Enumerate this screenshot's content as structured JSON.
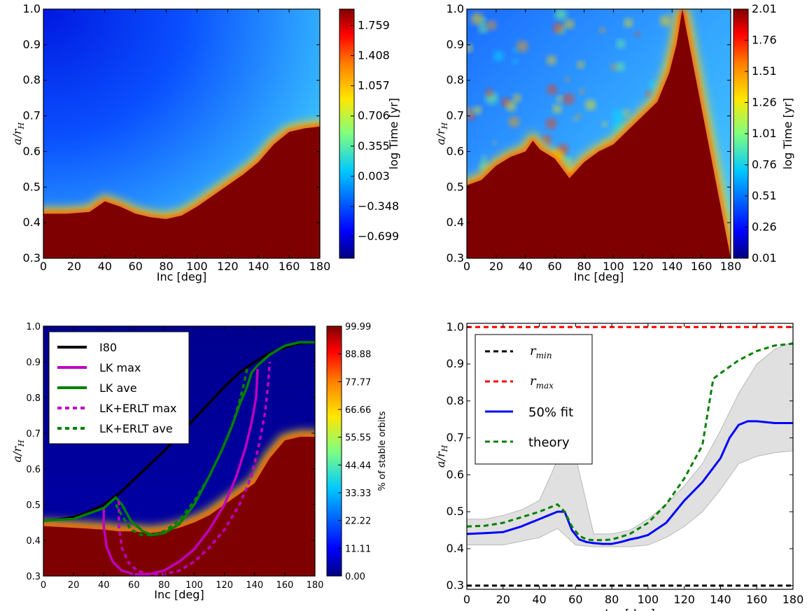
{
  "colorbar_palette": [
    "#00007f",
    "#0000ff",
    "#007fff",
    "#00ffff",
    "#7fff7f",
    "#ffff00",
    "#ff7f00",
    "#ff0000",
    "#7f0000"
  ],
  "chart_data": [
    {
      "type": "heatmap",
      "xlabel": "Inc [deg]",
      "ylabel_main": "a",
      "ylabel_sub": "H",
      "xlim": [
        0,
        180
      ],
      "ylim": [
        0.3,
        1.0
      ],
      "x_ticks": [
        "0",
        "20",
        "40",
        "60",
        "80",
        "100",
        "120",
        "140",
        "160",
        "180"
      ],
      "y_ticks": [
        "0.3",
        "0.4",
        "0.5",
        "0.6",
        "0.7",
        "0.8",
        "0.9",
        "1.0"
      ],
      "colorbar_label": "log Time [yr]",
      "colorbar_ticks": [
        "−0.699",
        "−0.348",
        "0.003",
        "0.355",
        "0.706",
        "1.057",
        "1.408",
        "1.759"
      ],
      "colorbar_range": [
        -0.95,
        1.95
      ],
      "boundary": [
        [
          0,
          0.425
        ],
        [
          15,
          0.425
        ],
        [
          30,
          0.43
        ],
        [
          40,
          0.46
        ],
        [
          50,
          0.445
        ],
        [
          60,
          0.425
        ],
        [
          70,
          0.415
        ],
        [
          80,
          0.41
        ],
        [
          90,
          0.42
        ],
        [
          100,
          0.445
        ],
        [
          110,
          0.475
        ],
        [
          120,
          0.505
        ],
        [
          130,
          0.535
        ],
        [
          140,
          0.57
        ],
        [
          150,
          0.62
        ],
        [
          160,
          0.655
        ],
        [
          170,
          0.665
        ],
        [
          180,
          0.67
        ]
      ]
    },
    {
      "type": "heatmap",
      "xlabel": "Inc [deg]",
      "ylabel_main": "a",
      "ylabel_sub": "H",
      "xlim": [
        0,
        180
      ],
      "ylim": [
        0.3,
        1.0
      ],
      "x_ticks": [
        "0",
        "20",
        "40",
        "60",
        "80",
        "100",
        "120",
        "140",
        "160",
        "180"
      ],
      "y_ticks": [
        "0.3",
        "0.4",
        "0.5",
        "0.6",
        "0.7",
        "0.8",
        "0.9",
        "1.0"
      ],
      "colorbar_label": "log Time [yr]",
      "colorbar_ticks": [
        "0.01",
        "0.26",
        "0.51",
        "0.76",
        "1.01",
        "1.26",
        "1.51",
        "1.76",
        "2.01"
      ],
      "colorbar_range": [
        0.01,
        2.01
      ],
      "boundary": [
        [
          0,
          0.505
        ],
        [
          10,
          0.52
        ],
        [
          20,
          0.56
        ],
        [
          30,
          0.585
        ],
        [
          40,
          0.6
        ],
        [
          45,
          0.63
        ],
        [
          50,
          0.605
        ],
        [
          60,
          0.58
        ],
        [
          70,
          0.525
        ],
        [
          80,
          0.57
        ],
        [
          90,
          0.6
        ],
        [
          100,
          0.62
        ],
        [
          110,
          0.66
        ],
        [
          120,
          0.7
        ],
        [
          130,
          0.74
        ],
        [
          138,
          0.82
        ],
        [
          143,
          0.9
        ],
        [
          147,
          1.0
        ]
      ]
    },
    {
      "type": "heatmap",
      "xlabel": "Inc [deg]",
      "ylabel_main": "a",
      "ylabel_sub": "H",
      "xlim": [
        0,
        180
      ],
      "ylim": [
        0.3,
        1.0
      ],
      "x_ticks": [
        "0",
        "20",
        "40",
        "60",
        "80",
        "100",
        "120",
        "140",
        "160",
        "180"
      ],
      "y_ticks": [
        "0.3",
        "0.4",
        "0.5",
        "0.6",
        "0.7",
        "0.8",
        "0.9",
        "1.0"
      ],
      "colorbar_label": "% of stable orbits",
      "colorbar_ticks": [
        "0.00",
        "11.11",
        "22.22",
        "33.33",
        "44.44",
        "55.55",
        "66.66",
        "77.77",
        "88.88",
        "99.99"
      ],
      "colorbar_range": [
        0.0,
        99.99
      ],
      "boundary": [
        [
          0,
          0.44
        ],
        [
          20,
          0.435
        ],
        [
          40,
          0.43
        ],
        [
          50,
          0.425
        ],
        [
          60,
          0.425
        ],
        [
          70,
          0.42
        ],
        [
          80,
          0.425
        ],
        [
          90,
          0.435
        ],
        [
          100,
          0.45
        ],
        [
          110,
          0.47
        ],
        [
          120,
          0.5
        ],
        [
          130,
          0.53
        ],
        [
          140,
          0.56
        ],
        [
          150,
          0.63
        ],
        [
          160,
          0.68
        ],
        [
          170,
          0.69
        ],
        [
          180,
          0.69
        ]
      ],
      "legend_position": "upper left",
      "series": [
        {
          "name": "I80",
          "color": "#000000",
          "dash": "solid",
          "x": [
            0,
            10,
            20,
            30,
            40,
            50,
            60,
            70,
            80,
            90,
            100,
            110,
            120,
            130,
            140,
            150,
            160,
            170,
            180
          ],
          "y": [
            0.455,
            0.458,
            0.465,
            0.48,
            0.5,
            0.53,
            0.57,
            0.61,
            0.65,
            0.695,
            0.74,
            0.785,
            0.83,
            0.87,
            0.9,
            0.925,
            0.94,
            0.952,
            0.955
          ]
        },
        {
          "name": "LK max",
          "color": "#bf00bf",
          "dash": "solid",
          "x": [
            40,
            40,
            42,
            46,
            52,
            60,
            70,
            80,
            90,
            100,
            110,
            120,
            128,
            134,
            138,
            141,
            142
          ],
          "y": [
            0.49,
            0.44,
            0.38,
            0.34,
            0.315,
            0.305,
            0.305,
            0.315,
            0.34,
            0.375,
            0.43,
            0.5,
            0.58,
            0.66,
            0.73,
            0.8,
            0.88
          ]
        },
        {
          "name": "LK ave",
          "color": "#008000",
          "dash": "solid",
          "x": [
            0,
            20,
            40,
            48,
            52,
            58,
            66,
            72,
            80,
            90,
            100,
            110,
            118,
            125,
            130,
            135,
            138,
            142,
            150,
            160,
            170,
            180
          ],
          "y": [
            0.455,
            0.46,
            0.49,
            0.52,
            0.5,
            0.455,
            0.425,
            0.415,
            0.42,
            0.445,
            0.5,
            0.58,
            0.65,
            0.72,
            0.78,
            0.83,
            0.87,
            0.89,
            0.92,
            0.945,
            0.955,
            0.955
          ]
        },
        {
          "name": "LK+ERLT max",
          "color": "#bf00bf",
          "dash": "dotted",
          "x": [
            50,
            50,
            52,
            56,
            62,
            70,
            80,
            90,
            100,
            110,
            120,
            130,
            138,
            143,
            147,
            149,
            150
          ],
          "y": [
            0.51,
            0.44,
            0.38,
            0.34,
            0.315,
            0.305,
            0.305,
            0.315,
            0.34,
            0.38,
            0.43,
            0.5,
            0.58,
            0.67,
            0.76,
            0.84,
            0.9
          ]
        },
        {
          "name": "LK+ERLT ave",
          "color": "#008000",
          "dash": "dotted",
          "x": [
            48,
            52,
            58,
            65,
            72,
            80,
            90,
            100,
            110,
            118,
            125,
            130,
            133,
            135
          ],
          "y": [
            0.5,
            0.47,
            0.43,
            0.415,
            0.415,
            0.425,
            0.455,
            0.51,
            0.58,
            0.65,
            0.72,
            0.79,
            0.84,
            0.88
          ]
        }
      ]
    },
    {
      "type": "line",
      "xlabel": "Inc [deg]",
      "ylabel_main": "a",
      "ylabel_sub": "H",
      "xlim": [
        0,
        180
      ],
      "ylim": [
        0.29,
        1.01
      ],
      "x_ticks": [
        "0",
        "20",
        "40",
        "60",
        "80",
        "100",
        "120",
        "140",
        "160",
        "180"
      ],
      "y_ticks": [
        "0.3",
        "0.4",
        "0.5",
        "0.6",
        "0.7",
        "0.8",
        "0.9",
        "1.0"
      ],
      "legend_position": "upper left",
      "band": {
        "x": [
          0,
          10,
          20,
          30,
          40,
          50,
          60,
          70,
          80,
          90,
          100,
          110,
          120,
          130,
          140,
          150,
          160,
          170,
          180
        ],
        "lower": [
          0.41,
          0.41,
          0.41,
          0.42,
          0.43,
          0.455,
          0.41,
          0.405,
          0.405,
          0.405,
          0.41,
          0.43,
          0.46,
          0.5,
          0.56,
          0.63,
          0.65,
          0.66,
          0.665
        ],
        "upper": [
          0.48,
          0.48,
          0.49,
          0.505,
          0.53,
          0.64,
          0.65,
          0.44,
          0.44,
          0.45,
          0.48,
          0.52,
          0.57,
          0.63,
          0.72,
          0.82,
          0.9,
          0.94,
          0.96
        ]
      },
      "series": [
        {
          "name_main": "r",
          "name_sub": "min",
          "color": "#000000",
          "dash": "dashed",
          "x": [
            0,
            180
          ],
          "y": [
            0.3,
            0.3
          ]
        },
        {
          "name_main": "r",
          "name_sub": "max",
          "color": "#ff0000",
          "dash": "dashed",
          "x": [
            0,
            180
          ],
          "y": [
            1.0,
            1.0
          ]
        },
        {
          "name": "50% fit",
          "color": "#0000ff",
          "dash": "solid",
          "x": [
            0,
            10,
            20,
            30,
            40,
            50,
            54,
            58,
            62,
            66,
            70,
            75,
            80,
            85,
            90,
            95,
            100,
            110,
            120,
            130,
            140,
            145,
            150,
            155,
            160,
            170,
            180
          ],
          "y": [
            0.44,
            0.442,
            0.445,
            0.46,
            0.48,
            0.5,
            0.5,
            0.45,
            0.425,
            0.418,
            0.415,
            0.413,
            0.413,
            0.418,
            0.425,
            0.43,
            0.437,
            0.47,
            0.53,
            0.58,
            0.645,
            0.7,
            0.735,
            0.745,
            0.745,
            0.74,
            0.74
          ]
        },
        {
          "name": "theory",
          "color": "#008000",
          "dash": "dashed",
          "x": [
            0,
            10,
            20,
            30,
            40,
            50,
            54,
            58,
            62,
            66,
            70,
            75,
            80,
            85,
            90,
            95,
            100,
            110,
            120,
            130,
            136,
            140,
            150,
            160,
            170,
            180
          ],
          "y": [
            0.46,
            0.462,
            0.47,
            0.485,
            0.5,
            0.52,
            0.5,
            0.46,
            0.435,
            0.425,
            0.423,
            0.423,
            0.425,
            0.432,
            0.44,
            0.455,
            0.47,
            0.52,
            0.59,
            0.68,
            0.86,
            0.875,
            0.91,
            0.935,
            0.95,
            0.955
          ]
        }
      ]
    }
  ]
}
